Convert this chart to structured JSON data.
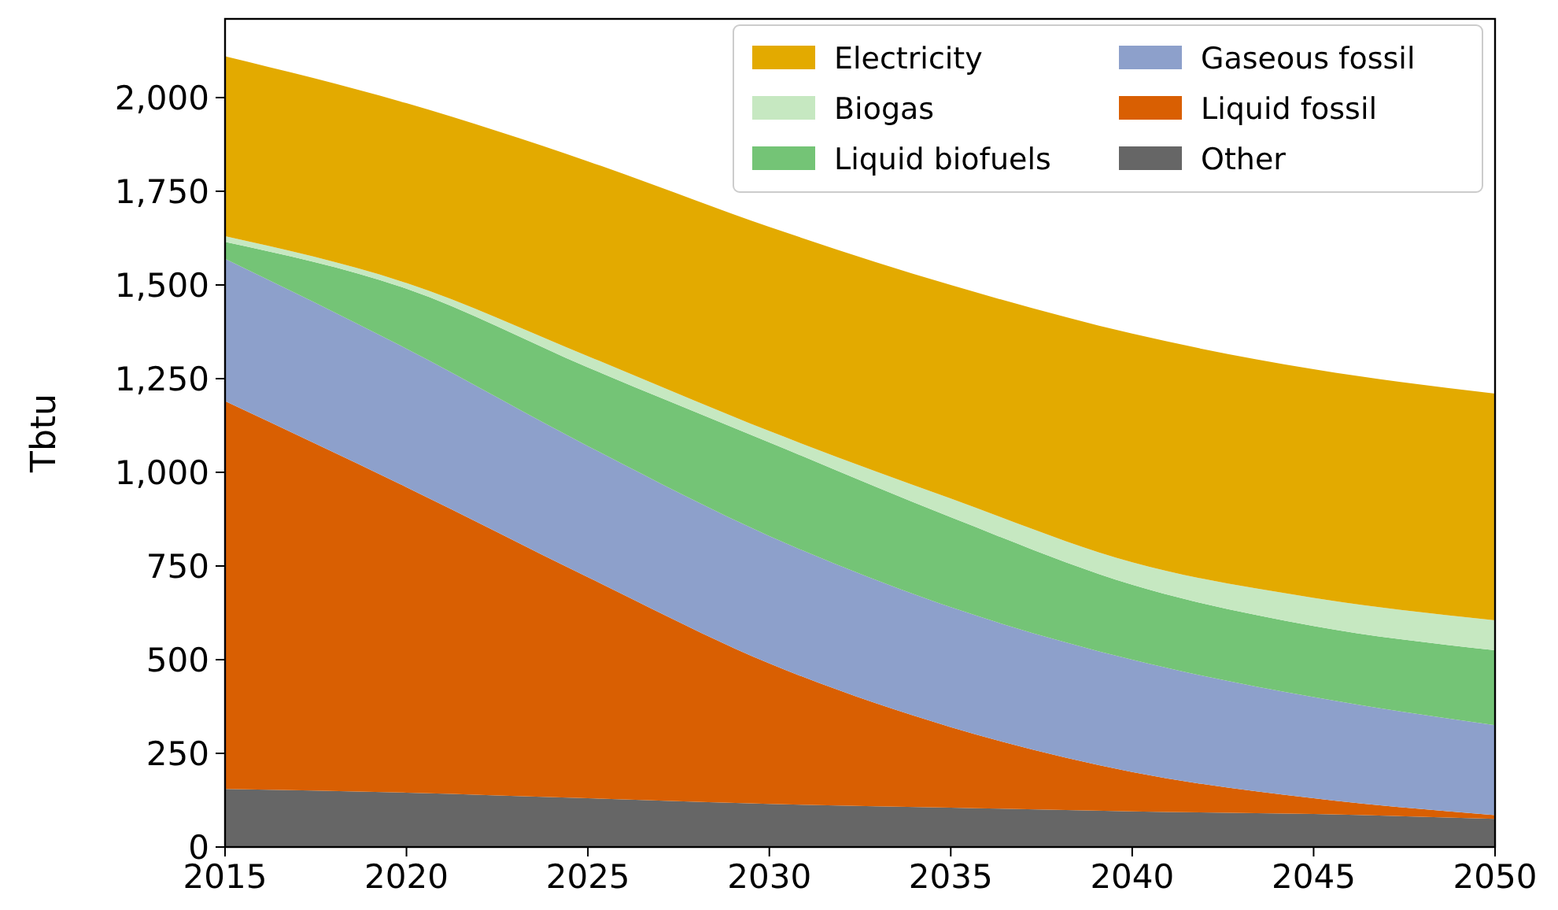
{
  "chart_data": {
    "type": "area",
    "stacked": true,
    "ylabel": "Tbtu",
    "x": [
      2015,
      2020,
      2025,
      2030,
      2035,
      2040,
      2045,
      2050
    ],
    "xlim": [
      2015,
      2050
    ],
    "xticks": [
      2015,
      2020,
      2025,
      2030,
      2035,
      2040,
      2045,
      2050
    ],
    "ylim": [
      0,
      2210
    ],
    "yticks": [
      0,
      250,
      500,
      750,
      {
        "value": 1000,
        "label": "1,000"
      },
      {
        "value": 1250,
        "label": "1,250"
      },
      {
        "value": 1500,
        "label": "1,500"
      },
      {
        "value": 1750,
        "label": "1,750"
      },
      {
        "value": 2000,
        "label": "2,000"
      }
    ],
    "grid": false,
    "legend": "top right",
    "series": [
      {
        "name": "Other",
        "color": "#666666",
        "values": [
          155,
          145,
          130,
          115,
          105,
          95,
          88,
          75
        ]
      },
      {
        "name": "Liquid fossil",
        "color": "#d95f02",
        "values": [
          1035,
          815,
          590,
          375,
          215,
          105,
          42,
          10
        ]
      },
      {
        "name": "Gaseous fossil",
        "color": "#8da0cb",
        "values": [
          380,
          370,
          350,
          340,
          320,
          300,
          270,
          240
        ]
      },
      {
        "name": "Liquid biofuels",
        "color": "#74c476",
        "values": [
          45,
          160,
          210,
          250,
          240,
          200,
          190,
          200
        ]
      },
      {
        "name": "Biogas",
        "color": "#c6e8c1",
        "values": [
          15,
          15,
          30,
          30,
          50,
          60,
          75,
          80
        ]
      },
      {
        "name": "Electricity",
        "color": "#e3aa00",
        "values": [
          480,
          480,
          520,
          545,
          570,
          610,
          610,
          605
        ]
      }
    ]
  }
}
